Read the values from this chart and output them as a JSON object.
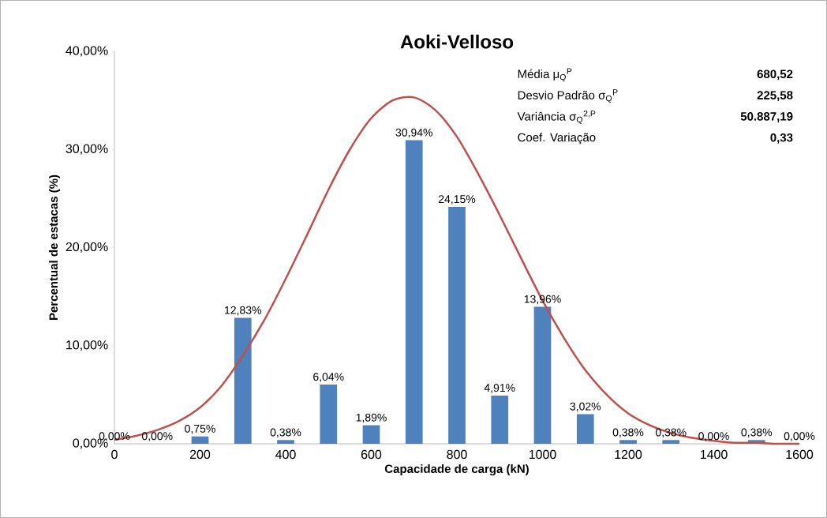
{
  "chart_data": {
    "type": "bar",
    "title": "Aoki-Velloso",
    "xlabel": "Capacidade de carga (kN)",
    "ylabel": "Percentual de estacas (%)",
    "x": [
      0,
      100,
      200,
      300,
      400,
      500,
      600,
      700,
      800,
      900,
      1000,
      1100,
      1200,
      1300,
      1400,
      1500,
      1600
    ],
    "xlim": [
      0,
      1600
    ],
    "ylim": [
      0,
      40
    ],
    "xticks": [
      0,
      200,
      400,
      600,
      800,
      1000,
      1200,
      1400,
      1600
    ],
    "yticks": [
      {
        "value": 0,
        "label": "0,00%"
      },
      {
        "value": 10,
        "label": "10,00%"
      },
      {
        "value": 20,
        "label": "20,00%"
      },
      {
        "value": 30,
        "label": "30,00%"
      },
      {
        "value": 40,
        "label": "40,00%"
      }
    ],
    "grid": false,
    "marker": "none",
    "series": [
      {
        "color": "#4f81bd",
        "values": [
          0,
          0,
          0.75,
          12.83,
          0.38,
          6.04,
          1.89,
          30.94,
          24.15,
          4.91,
          13.96,
          3.02,
          0.38,
          0.38,
          0,
          0.38,
          0
        ],
        "value_labels": [
          "0,00%",
          "0,00%",
          "0,75%",
          "12,83%",
          "0,38%",
          "6,04%",
          "1,89%",
          "30,94%",
          "24,15%",
          "4,91%",
          "13,96%",
          "3,02%",
          "0,38%",
          "0,38%",
          "0,00%",
          "0,38%",
          "0,00%"
        ]
      },
      {
        "type": "line",
        "color": "#c0504d",
        "x": [
          0,
          50,
          100,
          150,
          200,
          250,
          300,
          350,
          400,
          450,
          500,
          550,
          600,
          650,
          700,
          750,
          800,
          850,
          900,
          950,
          1000,
          1050,
          1100,
          1150,
          1200,
          1250,
          1300,
          1350,
          1400,
          1450,
          1500,
          1550,
          1600
        ],
        "values": [
          0.4,
          0.8,
          1.4,
          2.3,
          3.7,
          5.9,
          9.0,
          12.6,
          16.8,
          21.3,
          25.9,
          30.0,
          33.2,
          35.0,
          35.3,
          34.0,
          31.3,
          27.5,
          23.3,
          18.9,
          14.6,
          10.8,
          7.5,
          5.0,
          3.1,
          1.9,
          1.1,
          0.6,
          0.3,
          0.1,
          0.1,
          0.0,
          0.0
        ]
      }
    ],
    "annotations": [
      "Média μ$_{Q}$$^{P}$",
      "680,52",
      "Desvio Padrão  σ$_{Q}$$^{P}$",
      "225,58",
      "Variância  σ$_{Q}$$^{2,P}$",
      "50.887,19",
      "Coef. Variação",
      "0,33"
    ]
  }
}
